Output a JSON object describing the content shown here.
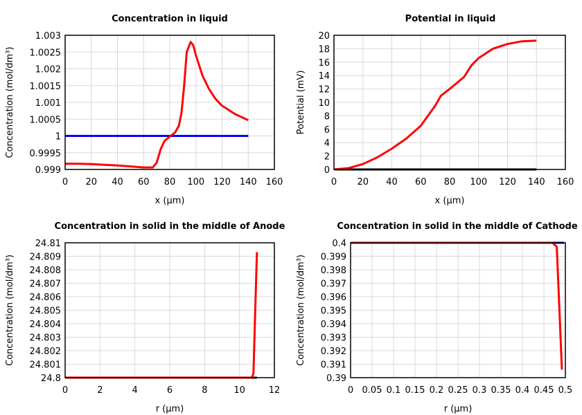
{
  "chart_data": [
    {
      "type": "line",
      "title": "Concentration in liquid",
      "xlabel": "x (µm)",
      "ylabel": "Concentration (mol/dm³)",
      "xlim": [
        0,
        160
      ],
      "ylim": [
        0.999,
        1.003
      ],
      "grid": true,
      "xticks": [
        "0",
        "20",
        "40",
        "60",
        "80",
        "100",
        "120",
        "140",
        "160"
      ],
      "yticks": [
        "0.999",
        "0.9995",
        "1",
        "1.0005",
        "1.001",
        "1.0015",
        "1.002",
        "1.0025",
        "1.003"
      ],
      "series": [
        {
          "color": "#0000ff",
          "x": [
            0,
            140
          ],
          "y": [
            1,
            1
          ]
        },
        {
          "color": "#ff0000",
          "x": [
            0,
            10,
            20,
            40,
            50,
            60,
            67,
            70,
            73,
            76,
            80,
            84,
            87,
            89,
            91,
            93,
            96,
            98,
            100,
            105,
            110,
            115,
            120,
            130,
            140
          ],
          "y": [
            0.99917,
            0.99917,
            0.99916,
            0.99912,
            0.99909,
            0.99906,
            0.99906,
            0.9992,
            0.9996,
            0.99985,
            0.99998,
            1.0001,
            1.0003,
            1.0007,
            1.0015,
            1.0025,
            1.0028,
            1.0027,
            1.0024,
            1.0018,
            1.0014,
            1.0011,
            1.0009,
            1.00065,
            1.00047
          ]
        }
      ]
    },
    {
      "type": "line",
      "title": "Potential in liquid",
      "xlabel": "x (µm)",
      "ylabel": "Potential (mV)",
      "xlim": [
        0,
        160
      ],
      "ylim": [
        0,
        20
      ],
      "grid": true,
      "xticks": [
        "0",
        "20",
        "40",
        "60",
        "80",
        "100",
        "120",
        "140",
        "160"
      ],
      "yticks": [
        "0",
        "2",
        "4",
        "6",
        "8",
        "10",
        "12",
        "14",
        "16",
        "18",
        "20"
      ],
      "series": [
        {
          "color": "#000000",
          "x": [
            0,
            140
          ],
          "y": [
            0,
            0
          ]
        },
        {
          "color": "#ff0000",
          "x": [
            0,
            10,
            20,
            30,
            40,
            50,
            60,
            70,
            74,
            80,
            90,
            95,
            100,
            110,
            120,
            130,
            140
          ],
          "y": [
            0,
            0.2,
            0.8,
            1.8,
            3.1,
            4.6,
            6.5,
            9.5,
            11,
            12,
            13.8,
            15.5,
            16.6,
            18,
            18.7,
            19.1,
            19.2
          ]
        }
      ]
    },
    {
      "type": "line",
      "title": "Concentration in solid in the middle of Anode",
      "xlabel": "r (µm)",
      "ylabel": "Concentration (mol/dm³)",
      "xlim": [
        0,
        12
      ],
      "ylim": [
        24.8,
        24.81
      ],
      "grid": true,
      "xticks": [
        "0",
        "2",
        "4",
        "6",
        "8",
        "10",
        "12"
      ],
      "yticks": [
        "24.8",
        "24.801",
        "24.802",
        "24.803",
        "24.804",
        "24.805",
        "24.806",
        "24.807",
        "24.808",
        "24.809",
        "24.81"
      ],
      "series": [
        {
          "color": "#000000",
          "x": [
            0,
            11
          ],
          "y": [
            24.8,
            24.8
          ]
        },
        {
          "color": "#ff0000",
          "x": [
            0,
            10.7,
            10.8,
            11
          ],
          "y": [
            24.8,
            24.8,
            24.8003,
            24.8093
          ]
        }
      ]
    },
    {
      "type": "line",
      "title": "Concentration in solid in the middle of Cathode",
      "xlabel": "r (µm)",
      "ylabel": "Concentration (mol/dm³)",
      "xlim": [
        0,
        0.5
      ],
      "ylim": [
        0.39,
        0.4
      ],
      "grid": true,
      "xticks": [
        "0",
        "0.05",
        "0.1",
        "0.15",
        "0.2",
        "0.25",
        "0.3",
        "0.35",
        "0.4",
        "0.45",
        "0.5"
      ],
      "yticks": [
        "0.39",
        "0.391",
        "0.392",
        "0.393",
        "0.394",
        "0.395",
        "0.396",
        "0.397",
        "0.398",
        "0.399",
        "0.4"
      ],
      "series": [
        {
          "color": "#0000ff",
          "x": [
            0,
            0.497
          ],
          "y": [
            0.4,
            0.4
          ]
        },
        {
          "color": "#ff0000",
          "x": [
            0,
            0.47,
            0.48,
            0.492
          ],
          "y": [
            0.4,
            0.4,
            0.3997,
            0.3906
          ]
        }
      ]
    }
  ]
}
